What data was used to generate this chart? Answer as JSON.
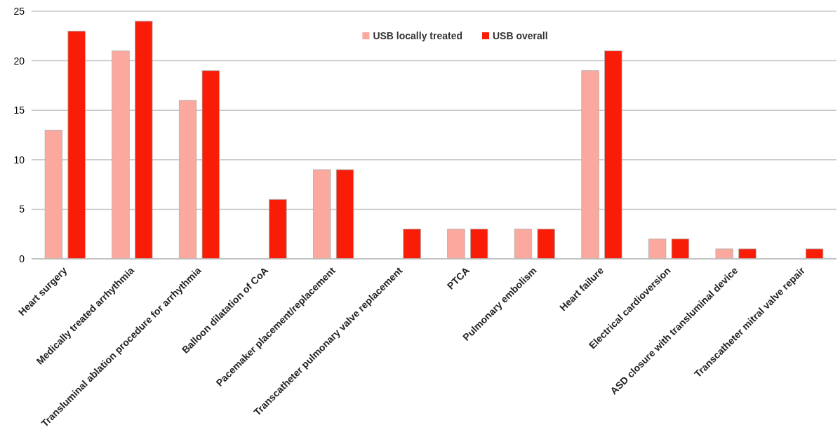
{
  "chart_data": {
    "type": "bar",
    "categories": [
      "Heart surgery",
      "Medically treated arrhythmia",
      "Transluminal ablation procedure for arrhythmia",
      "Balloon dilatation of CoA",
      "Pacemaker placement/replacement",
      "Transcatheter pulmonary valve replacement",
      "PTCA",
      "Pulmonary embolism",
      "Heart failure",
      "Electrical cardioversion",
      "ASD closure with transluminal device",
      "Transcatheter mitral valve repair"
    ],
    "series": [
      {
        "name": "USB locally treated",
        "color": "#fba89f",
        "values": [
          13,
          21,
          16,
          0,
          9,
          0,
          3,
          3,
          19,
          2,
          1,
          0
        ]
      },
      {
        "name": "USB overall",
        "color": "#f91c06",
        "values": [
          23,
          24,
          19,
          6,
          9,
          3,
          3,
          3,
          21,
          2,
          1,
          1
        ]
      }
    ],
    "ylim": [
      0,
      25
    ],
    "yticks": [
      0,
      5,
      10,
      15,
      20,
      25
    ],
    "grid": "y",
    "legend": "top"
  }
}
